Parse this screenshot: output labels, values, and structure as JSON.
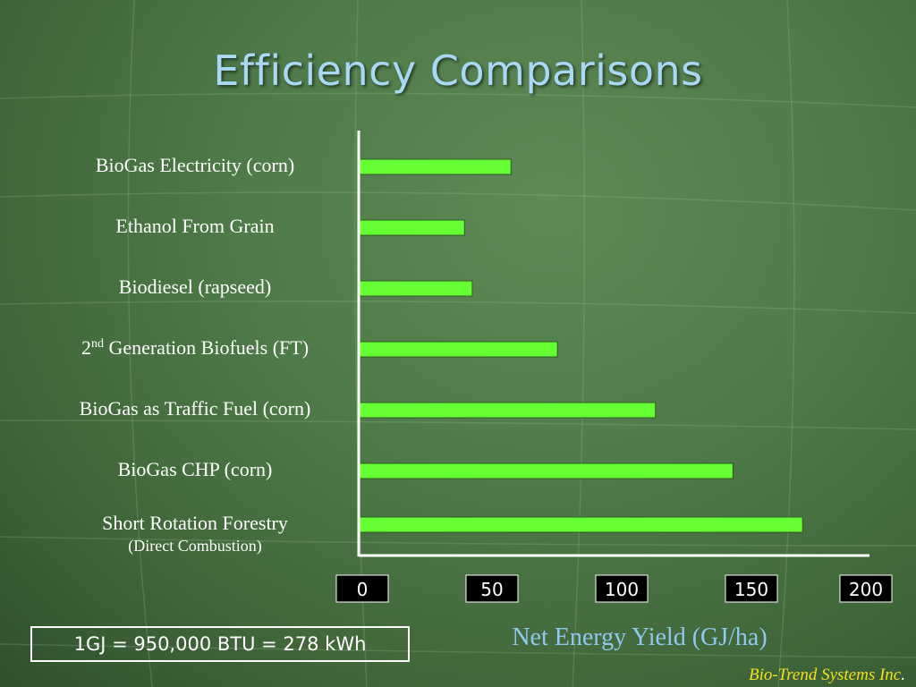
{
  "slide": {
    "title": "Efficiency Comparisons",
    "note": "1GJ = 950,000 BTU = 278 kWh",
    "credit": "Bio-Trend Systems Inc",
    "credit_period": "."
  },
  "colors": {
    "bar": "#66ff33",
    "title": "#a9d8f5",
    "axis_title": "#8ec9ef",
    "credit": "#f0e020"
  },
  "chart_data": {
    "type": "bar",
    "orientation": "horizontal",
    "title": "",
    "xlabel": "Net Energy Yield (GJ/ha)",
    "ylabel": "",
    "xlim": [
      0,
      200
    ],
    "ticks": [
      "0",
      "50",
      "100",
      "150",
      "200"
    ],
    "grid": false,
    "categories": [
      {
        "name": "BioGas Electricity (corn)",
        "value": 59
      },
      {
        "name": "Ethanol From Grain",
        "value": 41
      },
      {
        "name": "Biodiesel (rapseed)",
        "value": 44
      },
      {
        "name": "2",
        "sup": "nd",
        "rest": " Generation Biofuels (FT)",
        "value": 77
      },
      {
        "name": "BioGas as Traffic Fuel (corn)",
        "value": 115
      },
      {
        "name": "BioGas CHP (corn)",
        "value": 145
      },
      {
        "name": "Short Rotation Forestry",
        "sub": "(Direct Combustion)",
        "value": 172
      }
    ]
  }
}
